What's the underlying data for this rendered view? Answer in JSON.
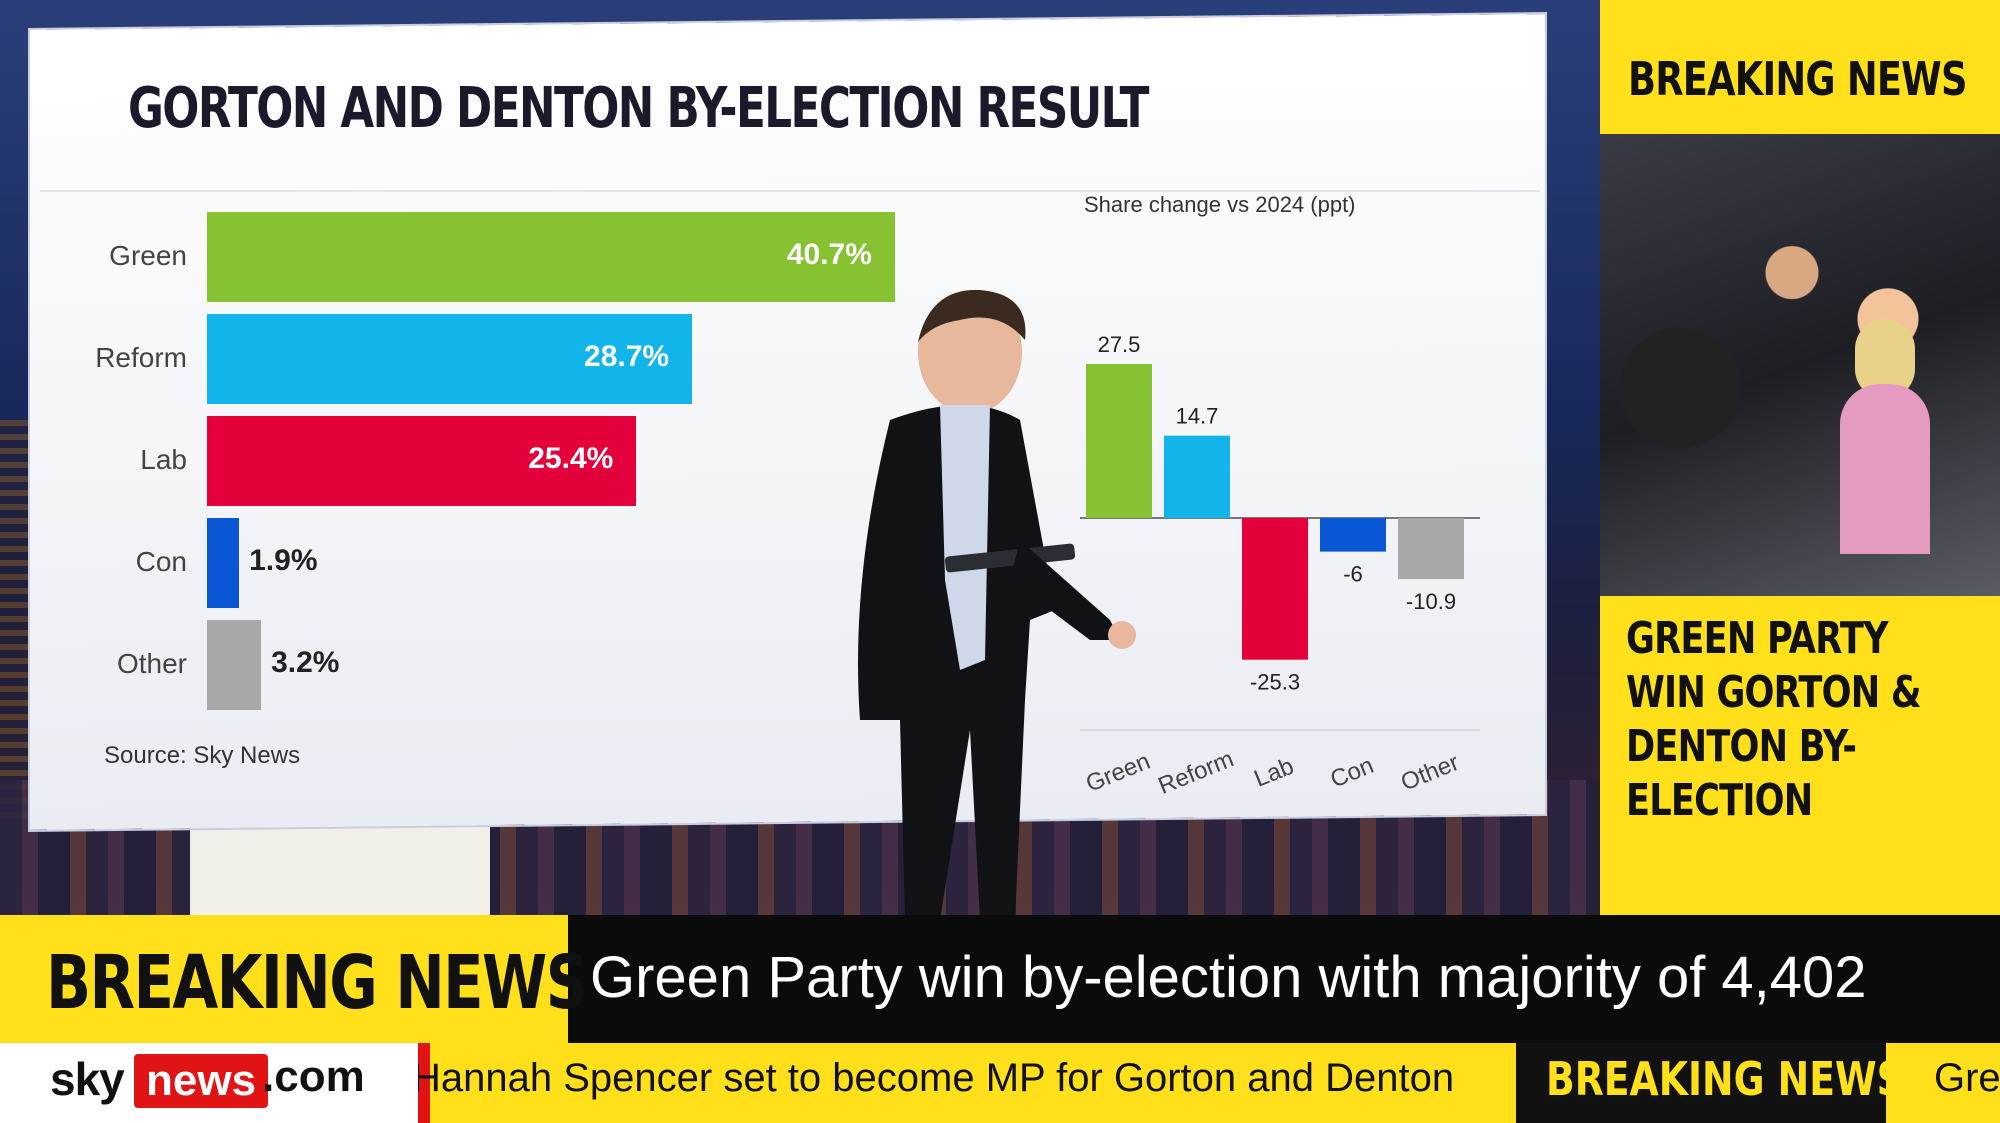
{
  "wall": {
    "title": "GORTON AND DENTON BY-ELECTION RESULT",
    "source": "Source: Sky News",
    "share_title": "Share change vs 2024 (ppt)"
  },
  "chart_data": [
    {
      "type": "bar",
      "orientation": "horizontal",
      "categories": [
        "Green",
        "Reform",
        "Lab",
        "Con",
        "Other"
      ],
      "values": [
        40.7,
        28.7,
        25.4,
        1.9,
        3.2
      ],
      "labels": [
        "40.7%",
        "28.7%",
        "25.4%",
        "1.9%",
        "3.2%"
      ],
      "colors": [
        "#86c232",
        "#12b5ea",
        "#e4003b",
        "#0a57d6",
        "#a8a8a8"
      ],
      "title": "GORTON AND DENTON BY-ELECTION RESULT",
      "grid": false
    },
    {
      "type": "bar",
      "categories": [
        "Green",
        "Reform",
        "Lab",
        "Con",
        "Other"
      ],
      "values": [
        27.5,
        14.7,
        -25.3,
        -6,
        -10.9
      ],
      "labels": [
        "27.5",
        "14.7",
        "-25.3",
        "-6",
        "-10.9"
      ],
      "colors": [
        "#86c232",
        "#12b5ea",
        "#e4003b",
        "#0a57d6",
        "#a8a8a8"
      ],
      "title": "Share change vs 2024 (ppt)",
      "ylim": [
        -30,
        30
      ],
      "grid": false
    }
  ],
  "panel": {
    "top": "BREAKING NEWS",
    "headline": "GREEN PARTY WIN GORTON & DENTON BY-ELECTION"
  },
  "lower_third": {
    "label": "BREAKING NEWS",
    "headline": "Green Party win by-election with majority of 4,402",
    "ticker": "Hannah Spencer set to become MP for Gorton and Denton",
    "ticker_label": "BREAKING NEWS",
    "ticker_tail": "Gre"
  },
  "logo": {
    "sky": "sky",
    "news": "news",
    "com": ".com"
  }
}
